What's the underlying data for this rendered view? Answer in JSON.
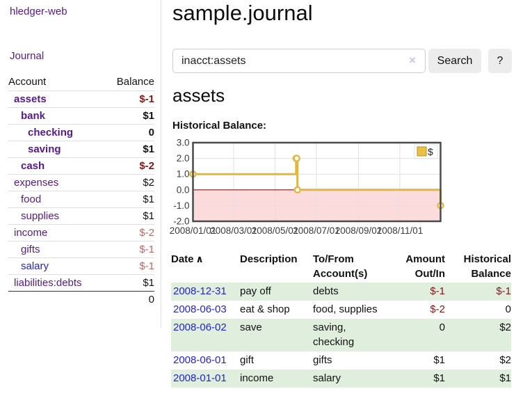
{
  "app": {
    "brand": "hledger-web",
    "nav_journal": "Journal"
  },
  "sidebar": {
    "columns": [
      "Account",
      "Balance"
    ],
    "accounts": [
      {
        "name": "assets",
        "indent": 1,
        "balance": "$-1",
        "bold": true,
        "neg": "strong",
        "link": "purple"
      },
      {
        "name": "bank",
        "indent": 2,
        "balance": "$1",
        "bold": true,
        "neg": "",
        "link": "purple"
      },
      {
        "name": "checking",
        "indent": 3,
        "balance": "0",
        "bold": true,
        "neg": "",
        "link": "purple"
      },
      {
        "name": "saving",
        "indent": 3,
        "balance": "$1",
        "bold": true,
        "neg": "",
        "link": "purple"
      },
      {
        "name": "cash",
        "indent": 2,
        "balance": "$-2",
        "bold": true,
        "neg": "strong",
        "link": "purple"
      },
      {
        "name": "expenses",
        "indent": 1,
        "balance": "$2",
        "bold": false,
        "neg": "",
        "link": "purple"
      },
      {
        "name": "food",
        "indent": 2,
        "balance": "$1",
        "bold": false,
        "neg": "",
        "link": "purple"
      },
      {
        "name": "supplies",
        "indent": 2,
        "balance": "$1",
        "bold": false,
        "neg": "",
        "link": "purple"
      },
      {
        "name": "income",
        "indent": 1,
        "balance": "$-2",
        "bold": false,
        "neg": "soft",
        "link": "purple"
      },
      {
        "name": "gifts",
        "indent": 2,
        "balance": "$-1",
        "bold": false,
        "neg": "soft",
        "link": "purple"
      },
      {
        "name": "salary",
        "indent": 2,
        "balance": "$-1",
        "bold": false,
        "neg": "soft",
        "link": "blue"
      },
      {
        "name": "liabilities:debts",
        "indent": 1,
        "balance": "$1",
        "bold": false,
        "neg": "",
        "link": "purple"
      }
    ],
    "total": "0"
  },
  "header": {
    "title": "sample.journal"
  },
  "search": {
    "value": "inacct:assets",
    "clear_icon": "×",
    "button_label": "Search",
    "help_label": "?"
  },
  "account_page": {
    "title": "assets",
    "chart_label": "Historical Balance:"
  },
  "chart_data": {
    "type": "line",
    "step": true,
    "title": "Historical Balance",
    "series": [
      {
        "name": "$",
        "points": [
          [
            "2008-01-01",
            1
          ],
          [
            "2008-06-01",
            2
          ],
          [
            "2008-06-02",
            2
          ],
          [
            "2008-06-03",
            0
          ],
          [
            "2008-12-31",
            -1
          ]
        ]
      }
    ],
    "xrange": [
      "2008-01-01",
      "2008-12-31"
    ],
    "ylim": [
      -2,
      3
    ],
    "yticks": [
      "3.0",
      "2.0",
      "1.0",
      "0.0",
      "-1.0",
      "-2.0"
    ],
    "xticks": [
      "2008/01/01",
      "2008/03/01",
      "2008/05/01",
      "2008/07/01",
      "2008/09/01",
      "2008/11/01"
    ],
    "legend": [
      {
        "label": "$",
        "color": "#eac243"
      }
    ],
    "grid": true,
    "legend_position": "top-right",
    "colors": {
      "line": "#e2b740",
      "marker_fill": "#ffffff",
      "negative_fill": "#fbdbdb",
      "zero_line": "#8b1717",
      "plot_border": "#4a4a4a",
      "gridline": "#e0e0e0",
      "tick_text": "#3a3a3a",
      "legend_border": "#b68f23"
    }
  },
  "register": {
    "headers": [
      {
        "line1": "Date",
        "line2": "",
        "sort": "asc",
        "align": "left"
      },
      {
        "line1": "Description",
        "line2": "",
        "align": "left"
      },
      {
        "line1": "To/From",
        "line2": "Account(s)",
        "align": "left"
      },
      {
        "line1": "Amount",
        "line2": "Out/In",
        "align": "right"
      },
      {
        "line1": "Historical",
        "line2": "Balance",
        "align": "right"
      }
    ],
    "sort_icon": "∧",
    "rows": [
      {
        "date": "2008-12-31",
        "description": "pay off",
        "accounts": "debts",
        "amount": "$-1",
        "amount_neg": true,
        "balance": "$-1",
        "balance_neg": true,
        "shaded": true
      },
      {
        "date": "2008-06-03",
        "description": "eat & shop",
        "accounts": "food, supplies",
        "amount": "$-2",
        "amount_neg": true,
        "balance": "0",
        "balance_neg": false,
        "shaded": false
      },
      {
        "date": "2008-06-02",
        "description": "save",
        "accounts": "saving, checking",
        "amount": "0",
        "amount_neg": false,
        "balance": "$2",
        "balance_neg": false,
        "shaded": true
      },
      {
        "date": "2008-06-01",
        "description": "gift",
        "accounts": "gifts",
        "amount": "$1",
        "amount_neg": false,
        "balance": "$2",
        "balance_neg": false,
        "shaded": false
      },
      {
        "date": "2008-01-01",
        "description": "income",
        "accounts": "salary",
        "amount": "$1",
        "amount_neg": false,
        "balance": "$1",
        "balance_neg": false,
        "shaded": true
      }
    ]
  }
}
